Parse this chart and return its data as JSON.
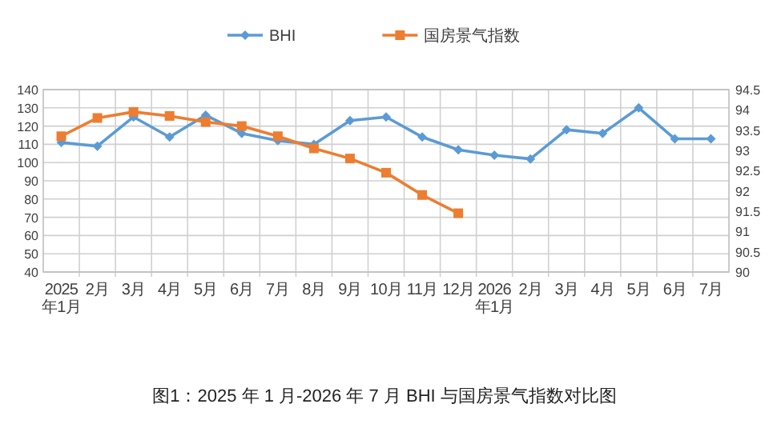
{
  "chart_data": {
    "type": "line",
    "title": "图1：2025 年 1 月-2026 年 7 月 BHI 与国房景气指数对比图",
    "categories": [
      "2025年1月",
      "2月",
      "3月",
      "4月",
      "5月",
      "6月",
      "7月",
      "8月",
      "9月",
      "10月",
      "11月",
      "12月",
      "2026年1月",
      "2月",
      "3月",
      "4月",
      "5月",
      "6月",
      "7月"
    ],
    "series": [
      {
        "name": "BHI",
        "color": "#5b9bd5",
        "marker": "diamond",
        "values": [
          111,
          109,
          125,
          114,
          126,
          116,
          112,
          110,
          123,
          125,
          114,
          107,
          104,
          102,
          118,
          116,
          130,
          113,
          113
        ]
      },
      {
        "name": "国房景气指数",
        "color": "#ed7d31",
        "marker": "square",
        "axis": "y2",
        "values": [
          93.35,
          93.8,
          93.95,
          93.85,
          93.7,
          93.6,
          93.35,
          93.05,
          92.8,
          92.45,
          91.9,
          91.45,
          null,
          null,
          null,
          null,
          null,
          null,
          null
        ]
      }
    ],
    "ylim": [
      40,
      140
    ],
    "yticks": [
      40,
      50,
      60,
      70,
      80,
      90,
      100,
      110,
      120,
      130,
      140
    ],
    "y2lim": [
      90,
      94.5
    ],
    "y2ticks": [
      90,
      90.5,
      91,
      91.5,
      92,
      92.5,
      93,
      93.5,
      94,
      94.5
    ],
    "grid": true,
    "legend": "top"
  }
}
